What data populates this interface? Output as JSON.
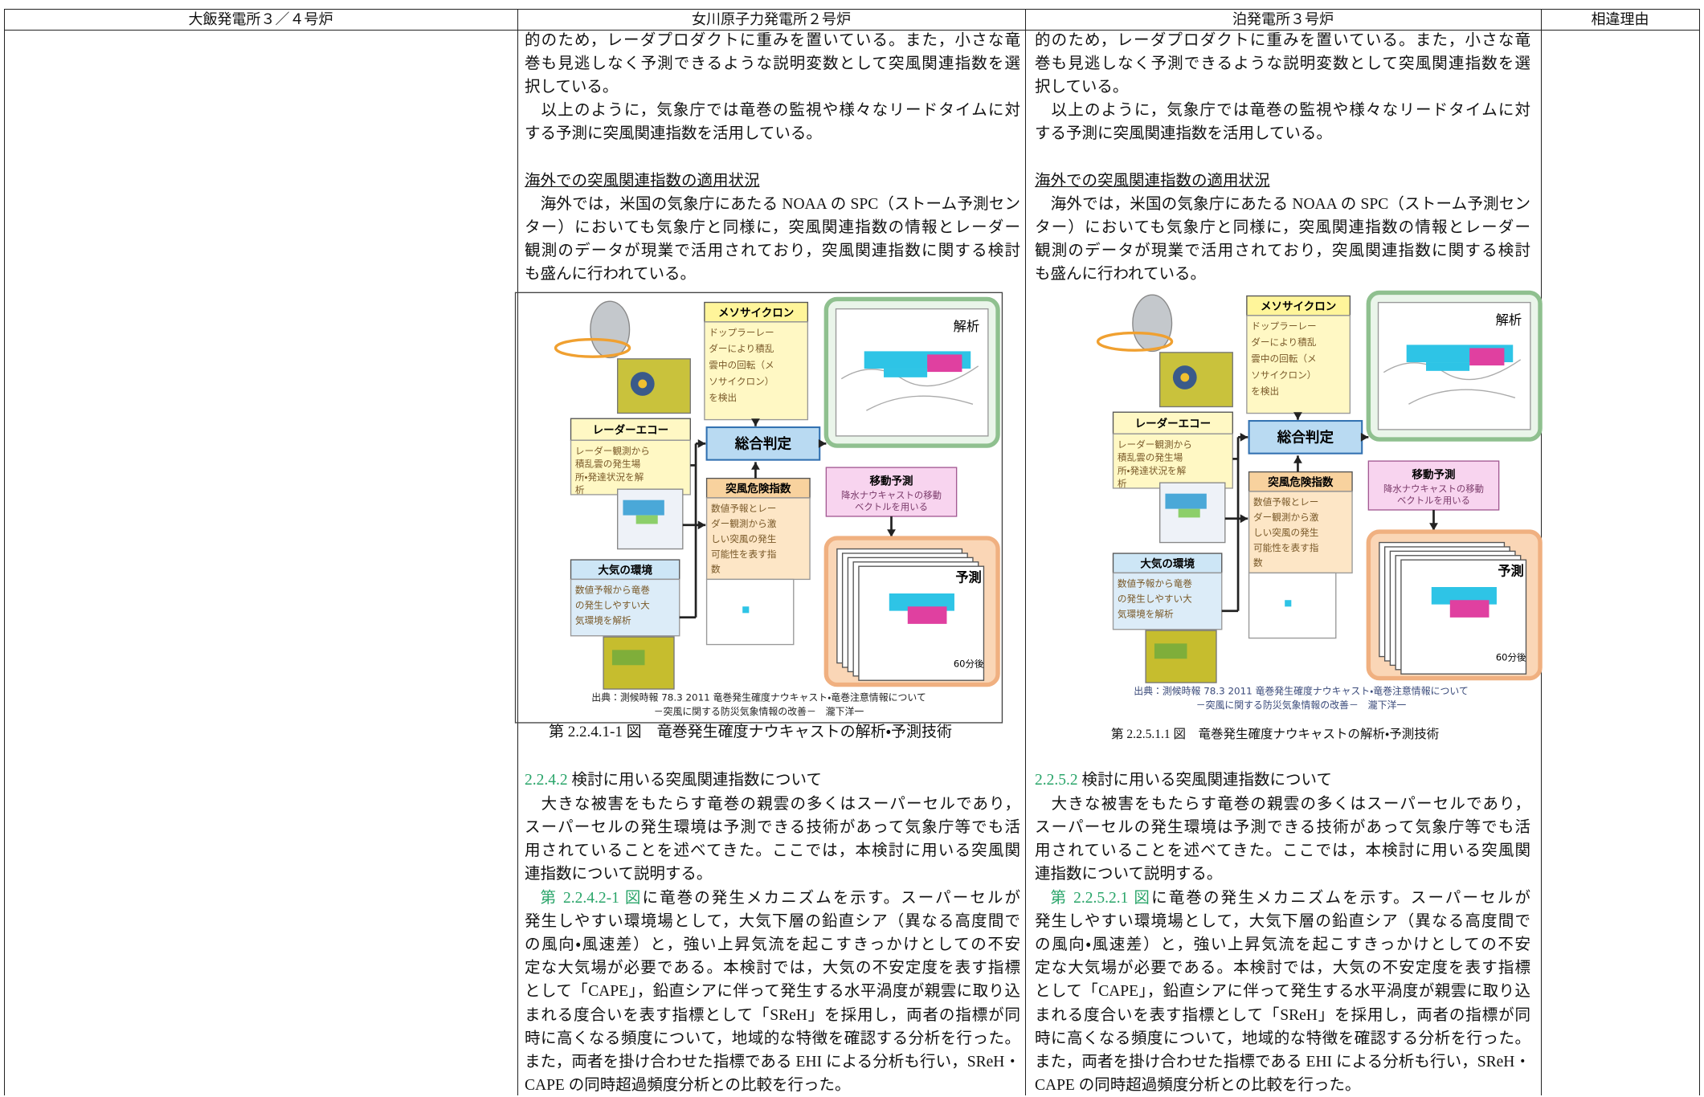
{
  "table": {
    "headers": [
      "大飯発電所３／４号炉",
      "女川原子力発電所２号炉",
      "泊発電所３号炉",
      "相違理由"
    ],
    "columns": [
      {
        "para1": [
          "的のため，レーダプロダクトに重みを置いている。また，小さな竜",
          "巻も見逃しなく予測できるような説明変数として突風関連指数を選",
          "択している。"
        ],
        "para2": [
          "　以上のように，気象庁では竜巻の監視や様々なリードタイムに対",
          "する予測に突風関連指数を活用している。"
        ],
        "heading1": "海外での突風関連指数の適用状況",
        "para3": [
          "　海外では，米国の気象庁にあたる NOAA の SPC（ストーム予測セン",
          "ター）においても気象庁と同様に，突風関連指数の情報とレーダー",
          "観測のデータが現業で活用されており，突風関連指数に関する検討",
          "も盛んに行われている。"
        ],
        "figure": {
          "mesocyclone": {
            "title": "メソサイクロン",
            "body": [
              "ドップラーレー",
              "ダーにより積乱",
              "雲中の回転（メ",
              "ソサイクロン）",
              "を検出"
            ]
          },
          "analysis": "解析",
          "radar_echo": {
            "title": "レーダーエコー",
            "body": [
              "レーダー観測から",
              "積乱雲の発生場",
              "所・発達状況を解",
              "析"
            ]
          },
          "judgement": "総合判定",
          "gust_index": {
            "title": "突風危険指数",
            "body": [
              "数値予報とレー",
              "ダー観測から激",
              "しい突風の発生",
              "可能性を表す指",
              "数"
            ]
          },
          "movement": {
            "title": "移動予測",
            "body": [
              "降水ナウキャストの移動",
              "ベクトルを用いる"
            ]
          },
          "atmosphere": {
            "title": "大気の環境",
            "body": [
              "数値予報から竜巻",
              "の発生しやすい大",
              "気環境を解析"
            ]
          },
          "forecast": "予測",
          "time": "60分後",
          "source": [
            "出典：測候時報 78.3 2011 竜巻発生確度ナウキャスト・竜巻注意情報について",
            "－突風に関する防災気象情報の改善－　瀧下洋一"
          ]
        },
        "caption": "第 2.2.4.1-1 図　竜巻発生確度ナウキャストの解析・予測技術",
        "heading2": {
          "number": "2.2.4.2",
          "title": " 検討に用いる突風関連指数について"
        },
        "para4": [
          "　大きな被害をもたらす竜巻の親雲の多くはスーパーセルであり，",
          "スーパーセルの発生環境は予測できる技術があって気象庁等でも活",
          "用されていることを述べてきた。ここでは，本検討に用いる突風関",
          "連指数について説明する。"
        ],
        "para5": {
          "ref": "第 2.2.4.2-1 図",
          "lines": [
            "に竜巻の発生メカニズムを示す。スーパーセルが",
            "発生しやすい環境場として，大気下層の鉛直シア（異なる高度間で",
            "の風向・風速差）と，強い上昇気流を起こすきっかけとしての不安",
            "定な大気場が必要である。本検討では，大気の不安定度を表す指標",
            "として「CAPE」，鉛直シアに伴って発生する水平渦度が親雲に取り込",
            "まれる度合いを表す指標として「SReH」を採用し，両者の指標が同",
            "時に高くなる頻度について，地域的な特徴を確認する分析を行った。",
            "また，両者を掛け合わせた指標である EHI による分析も行い，SReH・",
            "CAPE の同時超過頻度分析との比較を行った。"
          ]
        }
      },
      {
        "para1": [
          "的のため，レーダプロダクトに重みを置いている。また，小さな竜",
          "巻も見逃しなく予測できるような説明変数として突風関連指数を選",
          "択している。"
        ],
        "para2": [
          "　以上のように，気象庁では竜巻の監視や様々なリードタイムに対",
          "する予測に突風関連指数を活用している。"
        ],
        "heading1": "海外での突風関連指数の適用状況",
        "para3": [
          "　海外では，米国の気象庁にあたる NOAA の SPC（ストーム予測セン",
          "ター）においても気象庁と同様に，突風関連指数の情報とレーダー",
          "観測のデータが現業で活用されており，突風関連指数に関する検討",
          "も盛んに行われている。"
        ],
        "figure": {
          "mesocyclone": {
            "title": "メソサイクロン",
            "body": [
              "ドップラーレー",
              "ダーにより積乱",
              "雲中の回転（メ",
              "ソサイクロン）",
              "を検出"
            ]
          },
          "analysis": "解析",
          "radar_echo": {
            "title": "レーダーエコー",
            "body": [
              "レーダー観測から",
              "積乱雲の発生場",
              "所・発達状況を解",
              "析"
            ]
          },
          "judgement": "総合判定",
          "gust_index": {
            "title": "突風危険指数",
            "body": [
              "数値予報とレー",
              "ダー観測から激",
              "しい突風の発生",
              "可能性を表す指",
              "数"
            ]
          },
          "movement": {
            "title": "移動予測",
            "body": [
              "降水ナウキャストの移動",
              "ベクトルを用いる"
            ]
          },
          "atmosphere": {
            "title": "大気の環境",
            "body": [
              "数値予報から竜巻",
              "の発生しやすい大",
              "気環境を解析"
            ]
          },
          "forecast": "予測",
          "time": "60分後",
          "source": [
            "出典：測候時報 78.3 2011 竜巻発生確度ナウキャスト・竜巻注意情報について",
            "－突風に関する防災気象情報の改善－　瀧下洋一"
          ]
        },
        "caption": "第 2.2.5.1.1 図　竜巻発生確度ナウキャストの解析・予測技術",
        "heading2": {
          "number": "2.2.5.2",
          "title": " 検討に用いる突風関連指数について"
        },
        "para4": [
          "　大きな被害をもたらす竜巻の親雲の多くはスーパーセルであり，",
          "スーパーセルの発生環境は予測できる技術があって気象庁等でも活",
          "用されていることを述べてきた。ここでは，本検討に用いる突風関",
          "連指数について説明する。"
        ],
        "para5": {
          "ref": "第 2.2.5.2.1 図",
          "lines": [
            "に竜巻の発生メカニズムを示す。スーパーセルが",
            "発生しやすい環境場として，大気下層の鉛直シア（異なる高度間で",
            "の風向・風速差）と，強い上昇気流を起こすきっかけとしての不安",
            "定な大気場が必要である。本検討では，大気の不安定度を表す指標",
            "として「CAPE」，鉛直シアに伴って発生する水平渦度が親雲に取り込",
            "まれる度合いを表す指標として「SReH」を採用し，両者の指標が同",
            "時に高くなる頻度について，地域的な特徴を確認する分析を行った。",
            "また，両者を掛け合わせた指標である EHI による分析も行い，SReH・",
            "CAPE の同時超過頻度分析との比較を行った。"
          ]
        }
      }
    ]
  }
}
